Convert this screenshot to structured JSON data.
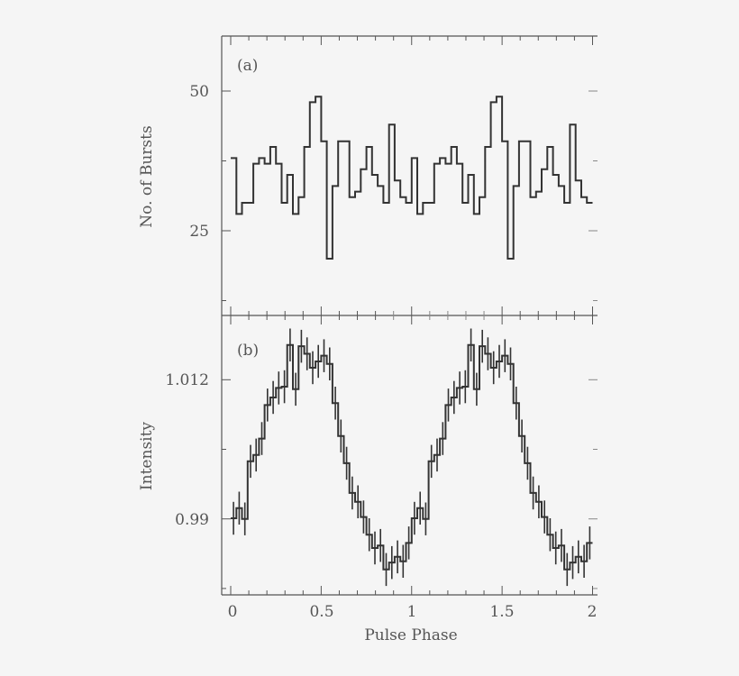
{
  "chart_data": [
    {
      "panel": "(a)",
      "type": "line",
      "style": "step-histogram",
      "title": "",
      "xlabel": "Pulse Phase",
      "ylabel": "No. of Bursts",
      "xlim": [
        0,
        2
      ],
      "ylim": [
        15,
        60
      ],
      "x_ticks": [
        "0",
        "0.5",
        "1",
        "1.5",
        "2"
      ],
      "y_ticks": [
        "25",
        "50"
      ],
      "bins_per_cycle": 32,
      "cycles_shown": 2,
      "bin_width": 0.03125,
      "values_one_cycle": [
        38,
        28,
        30,
        30,
        37,
        38,
        37,
        40,
        37,
        30,
        35,
        28,
        31,
        40,
        48,
        49,
        41,
        20,
        33,
        41,
        41,
        31,
        32,
        36,
        40,
        35,
        33,
        30,
        44,
        34,
        31,
        30
      ],
      "grid": false
    },
    {
      "panel": "(b)",
      "type": "line",
      "style": "step-histogram-with-error-bars",
      "title": "",
      "xlabel": "Pulse Phase",
      "ylabel": "Intensity",
      "xlim": [
        0,
        2
      ],
      "ylim": [
        0.978,
        1.022
      ],
      "x_ticks": [
        "0",
        "0.5",
        "1",
        "1.5",
        "2"
      ],
      "y_ticks": [
        "0.99",
        "1.012"
      ],
      "bins_per_cycle": 32,
      "cycles_shown": 2,
      "bin_width": 0.03125,
      "values_one_cycle": [
        0.9901,
        0.9917,
        0.99,
        0.9991,
        1.0001,
        1.0027,
        1.008,
        1.0092,
        1.0107,
        1.0109,
        1.0175,
        1.0105,
        1.0173,
        1.0161,
        1.0139,
        1.0149,
        1.0158,
        1.0145,
        1.0083,
        1.0031,
        0.9988,
        0.9941,
        0.9927,
        0.9903,
        0.9875,
        0.9854,
        0.9858,
        0.982,
        0.9831,
        0.984,
        0.9833,
        0.9862
      ],
      "error": 0.0026,
      "grid": false
    }
  ],
  "figure": {
    "panel_a_label": "(a)",
    "panel_b_label": "(b)",
    "xlabel": "Pulse Phase",
    "ylabel_top": "No. of Bursts",
    "ylabel_bottom": "Intensity",
    "x_tick_labels": [
      "0",
      "0.5",
      "1",
      "1.5",
      "2"
    ],
    "top_y_tick_labels": [
      "50",
      "25"
    ],
    "bottom_y_tick_labels": [
      "1.012",
      "0.99"
    ]
  }
}
